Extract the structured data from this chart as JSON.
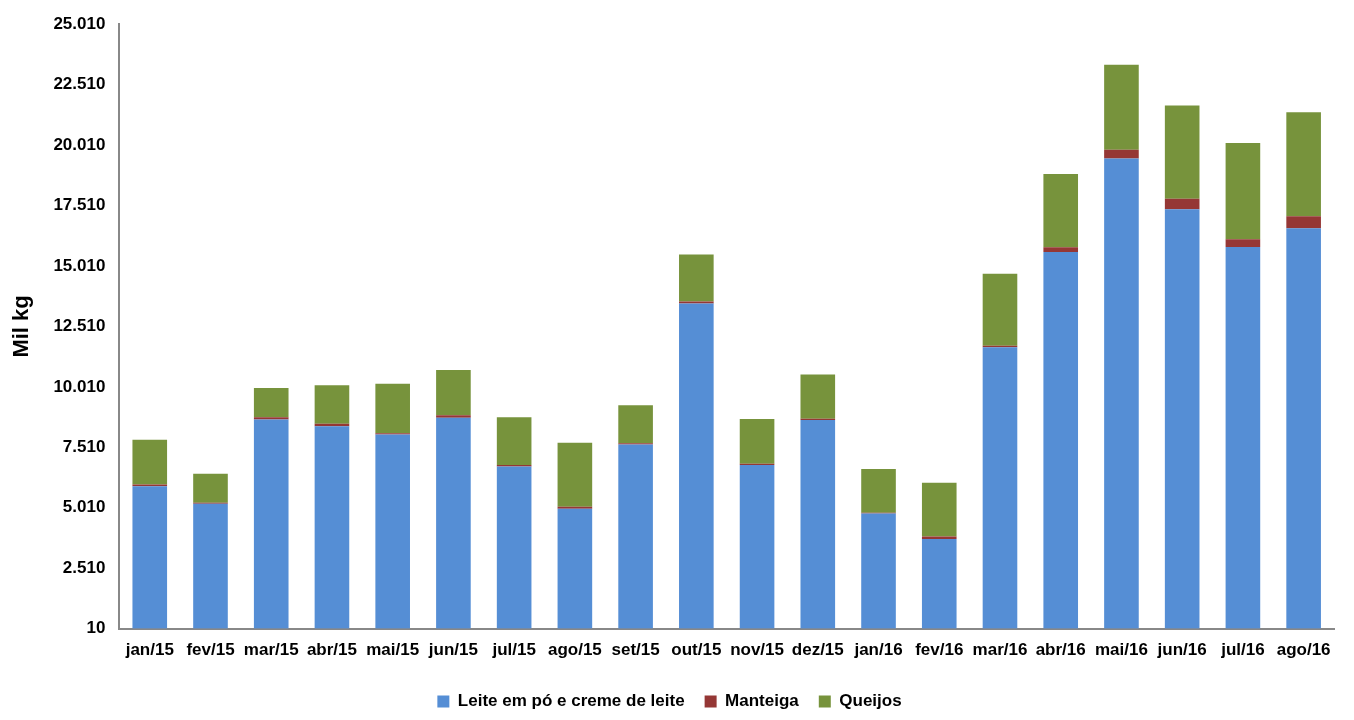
{
  "chart_data": {
    "type": "bar",
    "stacked": true,
    "ylabel": "Mil kg",
    "legend": "bottom",
    "categories": [
      "jan/15",
      "fev/15",
      "mar/15",
      "abr/15",
      "mai/15",
      "jun/15",
      "jul/15",
      "ago/15",
      "set/15",
      "out/15",
      "nov/15",
      "dez/15",
      "jan/16",
      "fev/16",
      "mar/16",
      "abr/16",
      "mai/16",
      "jun/16",
      "jul/16",
      "ago/16"
    ],
    "series": [
      {
        "name": "Leite em pó e creme de leite",
        "color": "#558ed5",
        "values": [
          5900,
          5170,
          8660,
          8380,
          8040,
          8730,
          6710,
          4970,
          7630,
          13460,
          6780,
          8640,
          4770,
          3720,
          11650,
          15590,
          19460,
          17360,
          15790,
          16570
        ]
      },
      {
        "name": "Manteiga",
        "color": "#953735",
        "values": [
          70,
          50,
          90,
          100,
          50,
          100,
          70,
          80,
          50,
          80,
          50,
          50,
          30,
          100,
          60,
          190,
          360,
          430,
          320,
          500
        ]
      },
      {
        "name": "Queijos",
        "color": "#77933c",
        "values": [
          1850,
          1190,
          1210,
          1600,
          2050,
          1880,
          1970,
          2650,
          1570,
          1940,
          1850,
          1830,
          1810,
          2220,
          2980,
          3030,
          3510,
          3860,
          3990,
          4300
        ]
      }
    ],
    "ylim": [
      10,
      25010
    ],
    "yticks": [
      {
        "value": 10,
        "label": "10"
      },
      {
        "value": 2510,
        "label": "2.510"
      },
      {
        "value": 5010,
        "label": "5.010"
      },
      {
        "value": 7510,
        "label": "7.510"
      },
      {
        "value": 10010,
        "label": "10.010"
      },
      {
        "value": 12510,
        "label": "12.510"
      },
      {
        "value": 15010,
        "label": "15.010"
      },
      {
        "value": 17510,
        "label": "17.510"
      },
      {
        "value": 20010,
        "label": "20.010"
      },
      {
        "value": 22510,
        "label": "22.510"
      },
      {
        "value": 25010,
        "label": "25.010"
      }
    ]
  }
}
